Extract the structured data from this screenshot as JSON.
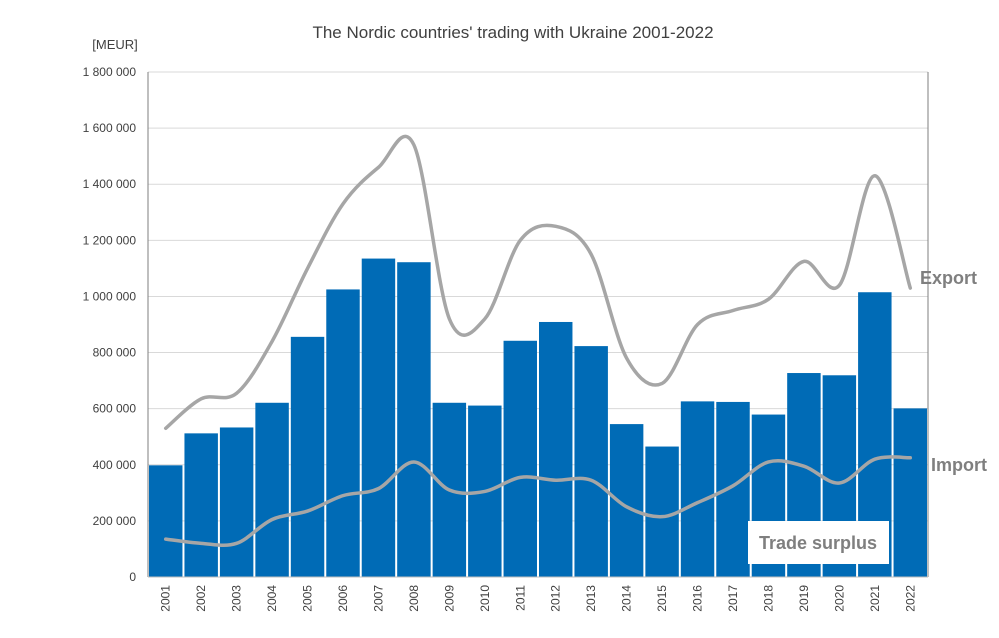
{
  "chart_data": {
    "type": "bar",
    "title": "The Nordic countries' trading with Ukraine 2001-2022",
    "ylabel": "[MEUR]",
    "xlabel": "",
    "ylim": [
      0,
      1800000
    ],
    "yticks": [
      0,
      200000,
      400000,
      600000,
      800000,
      1000000,
      1200000,
      1400000,
      1600000,
      1800000
    ],
    "ytick_labels": [
      "0",
      "200 000",
      "400 000",
      "600 000",
      "800 000",
      "1 000 000",
      "1 200 000",
      "1 400 000",
      "1 600 000",
      "1 800 000"
    ],
    "grid": true,
    "categories": [
      "2001",
      "2002",
      "2003",
      "2004",
      "2005",
      "2006",
      "2007",
      "2008",
      "2009",
      "2010",
      "2011",
      "2012",
      "2013",
      "2014",
      "2015",
      "2016",
      "2017",
      "2018",
      "2019",
      "2020",
      "2021",
      "2022"
    ],
    "series": [
      {
        "name": "Trade surplus",
        "type": "bar",
        "color": "#006bb6",
        "values": [
          398000,
          512000,
          533000,
          621000,
          856000,
          1025000,
          1135000,
          1122000,
          621000,
          611000,
          842000,
          909000,
          823000,
          545000,
          465000,
          626000,
          624000,
          579000,
          727000,
          719000,
          1015000,
          601000
        ]
      },
      {
        "name": "Export",
        "type": "line",
        "color": "#a6a6a6",
        "values": [
          530000,
          635000,
          655000,
          840000,
          1100000,
          1330000,
          1460000,
          1540000,
          920000,
          920000,
          1200000,
          1250000,
          1150000,
          780000,
          690000,
          900000,
          950000,
          990000,
          1125000,
          1040000,
          1430000,
          1030000
        ]
      },
      {
        "name": "Import",
        "type": "line",
        "color": "#a6a6a6",
        "values": [
          135000,
          120000,
          120000,
          205000,
          235000,
          290000,
          315000,
          410000,
          310000,
          305000,
          355000,
          345000,
          345000,
          250000,
          215000,
          265000,
          325000,
          410000,
          395000,
          335000,
          420000,
          425000
        ]
      }
    ]
  }
}
